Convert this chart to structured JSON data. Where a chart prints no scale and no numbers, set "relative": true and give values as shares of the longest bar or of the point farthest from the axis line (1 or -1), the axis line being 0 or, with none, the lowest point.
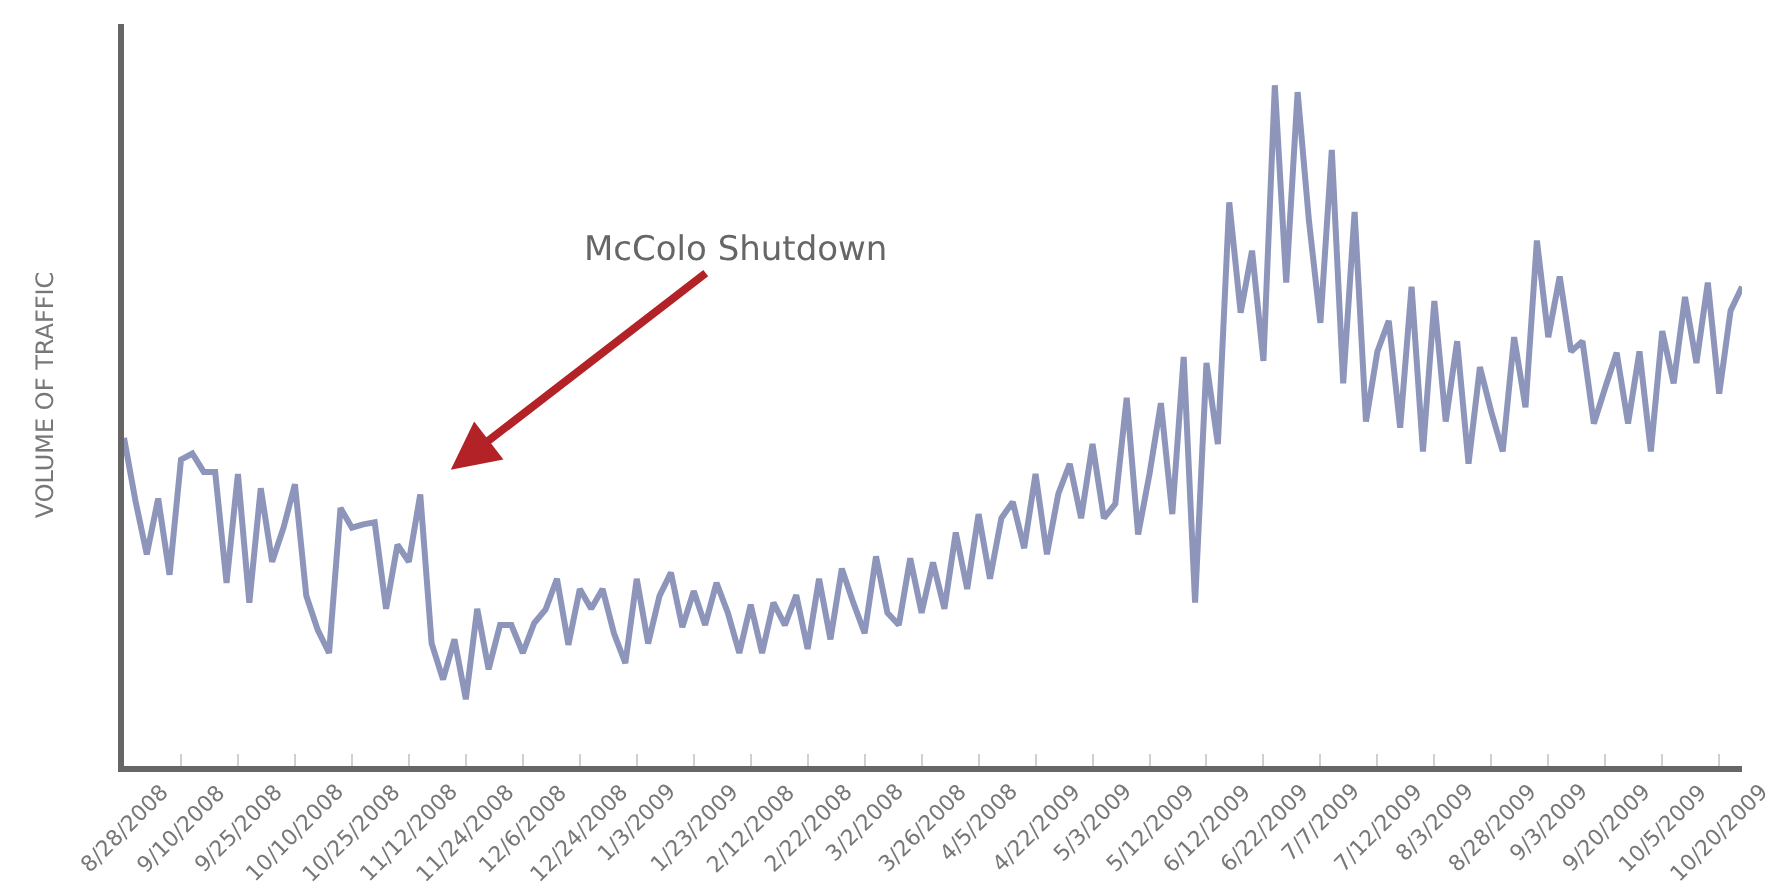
{
  "chart_data": {
    "type": "line",
    "ylabel": "VOLUME OF TRAFFIC",
    "relative": true,
    "color": "#8e95bb",
    "annotations": [
      "McColo Shutdown"
    ],
    "categories": [
      "8/28/2008",
      null,
      null,
      null,
      null,
      "9/10/2008",
      null,
      null,
      null,
      null,
      "9/25/2008",
      null,
      null,
      null,
      null,
      "10/10/2008",
      null,
      null,
      null,
      null,
      "10/25/2008",
      null,
      null,
      null,
      null,
      "11/12/2008",
      null,
      null,
      null,
      null,
      "11/24/2008",
      null,
      null,
      null,
      null,
      "12/6/2008",
      null,
      null,
      null,
      null,
      "12/24/2008",
      null,
      null,
      null,
      null,
      "1/3/2009",
      null,
      null,
      null,
      null,
      "1/23/2009",
      null,
      null,
      null,
      null,
      "2/12/2008",
      null,
      null,
      null,
      null,
      "2/22/2008",
      null,
      null,
      null,
      null,
      "3/2/2008",
      null,
      null,
      null,
      null,
      "3/26/2008",
      null,
      null,
      null,
      null,
      "4/5/2008",
      null,
      null,
      null,
      null,
      "4/22/2009",
      null,
      null,
      null,
      null,
      "5/3/2009",
      null,
      null,
      null,
      null,
      "5/12/2009",
      null,
      null,
      null,
      null,
      "6/12/2009",
      null,
      null,
      null,
      null,
      "6/22/2009",
      null,
      null,
      null,
      null,
      "7/7/2009",
      null,
      null,
      null,
      null,
      "7/12/2009",
      null,
      null,
      null,
      null,
      "8/3/2009",
      null,
      null,
      null,
      null,
      "8/28/2009",
      null,
      null,
      null,
      null,
      "9/3/2009",
      null,
      null,
      null,
      null,
      "9/20/2009",
      null,
      null,
      null,
      null,
      "10/5/2009",
      null,
      null,
      null,
      null,
      "10/20/2009",
      null,
      null
    ],
    "values": [
      0.482,
      0.39,
      0.311,
      0.393,
      0.281,
      0.45,
      0.459,
      0.432,
      0.432,
      0.269,
      0.429,
      0.24,
      0.408,
      0.3,
      0.35,
      0.414,
      0.25,
      0.2,
      0.166,
      0.379,
      0.35,
      0.355,
      0.358,
      0.231,
      0.325,
      0.3,
      0.399,
      0.18,
      0.127,
      0.186,
      0.098,
      0.231,
      0.142,
      0.207,
      0.207,
      0.166,
      0.21,
      0.23,
      0.275,
      0.178,
      0.26,
      0.231,
      0.26,
      0.195,
      0.151,
      0.275,
      0.18,
      0.25,
      0.284,
      0.204,
      0.257,
      0.207,
      0.269,
      0.225,
      0.166,
      0.237,
      0.166,
      0.24,
      0.207,
      0.251,
      0.172,
      0.275,
      0.186,
      0.29,
      0.24,
      0.195,
      0.308,
      0.225,
      0.207,
      0.305,
      0.225,
      0.299,
      0.231,
      0.343,
      0.26,
      0.37,
      0.275,
      0.364,
      0.388,
      0.32,
      0.429,
      0.311,
      0.4,
      0.444,
      0.364,
      0.473,
      0.364,
      0.385,
      0.541,
      0.34,
      0.429,
      0.533,
      0.37,
      0.601,
      0.24,
      0.592,
      0.473,
      0.828,
      0.666,
      0.757,
      0.595,
      1,
      0.71,
      0.99,
      0.8,
      0.651,
      0.905,
      0.562,
      0.814,
      0.506,
      0.609,
      0.654,
      0.497,
      0.704,
      0.462,
      0.683,
      0.506,
      0.624,
      0.444,
      0.586,
      0.52,
      0.462,
      0.63,
      0.527,
      0.772,
      0.63,
      0.719,
      0.609,
      0.624,
      0.503,
      0.556,
      0.607,
      0.503,
      0.609,
      0.462,
      0.639,
      0.562,
      0.689,
      0.592,
      0.71,
      0.547,
      0.669,
      0.704
    ]
  }
}
